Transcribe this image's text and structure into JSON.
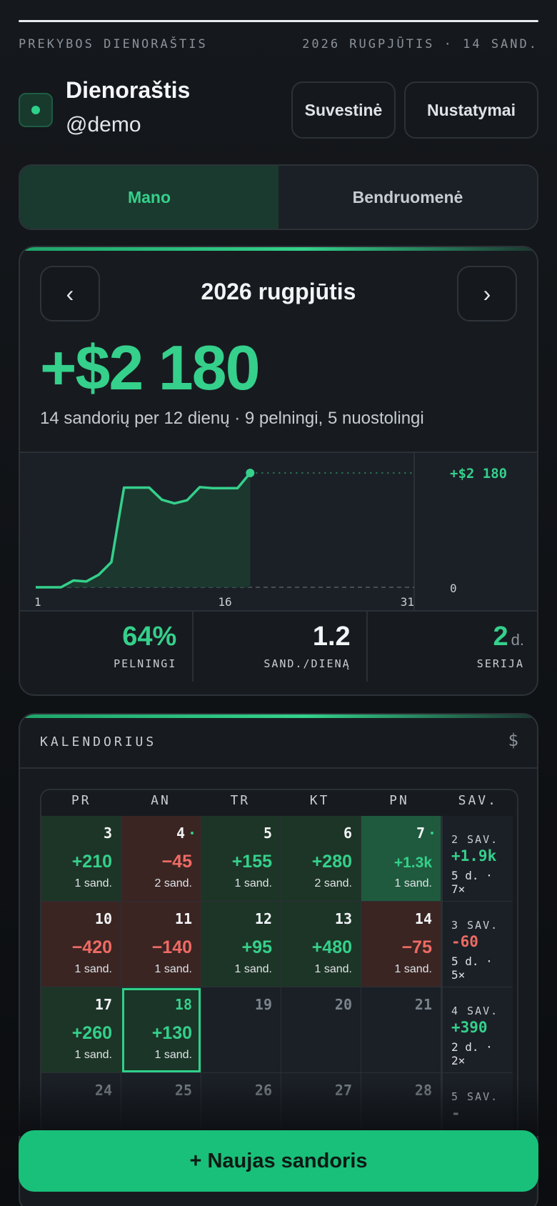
{
  "meta": {
    "left": "PREKYBOS DIENORAŠTIS",
    "right": "2026 RUGPJŪTIS · 14 SAND."
  },
  "header": {
    "title": "Dienoraštis",
    "handle": "@demo",
    "summary_btn": "Suvestinė",
    "settings_btn": "Nustatymai"
  },
  "tabs": {
    "mine": "Mano",
    "community": "Bendruomenė"
  },
  "overview": {
    "prev": "‹",
    "next": "›",
    "month": "2026 rugpjūtis",
    "total": "+$2 180",
    "summary": "14 sandorių per 12 dienų · 9 pelningi, 5 nuostolingi"
  },
  "chart_data": {
    "type": "area",
    "x": [
      1,
      2,
      3,
      4,
      5,
      6,
      7,
      8,
      9,
      10,
      11,
      12,
      13,
      14,
      15,
      16,
      17,
      18
    ],
    "y": [
      0,
      0,
      0,
      130,
      110,
      240,
      480,
      1900,
      1900,
      1900,
      1670,
      1600,
      1660,
      1910,
      1890,
      1890,
      1890,
      2180
    ],
    "xticks": [
      "1",
      "16",
      "31"
    ],
    "xlim": [
      1,
      31
    ],
    "ylim": [
      0,
      2180
    ],
    "last_label": "+$2 180",
    "zero_label": "0",
    "colors": {
      "line": "#35d08b",
      "fill": "#1c3a2e",
      "negative": "#e05a55"
    }
  },
  "stats": [
    {
      "value": "64%",
      "label": "PELNINGI",
      "color": "#35d08b"
    },
    {
      "value": "1.2",
      "label": "SAND./DIENĄ",
      "color": "#f2f4f6"
    },
    {
      "value": "2",
      "unit": "d.",
      "label": "SERIJA",
      "color": "#35d08b"
    }
  ],
  "calendar": {
    "title": "KALENDORIUS",
    "currency": "$",
    "days_header": [
      "PR",
      "AN",
      "TR",
      "KT",
      "PN"
    ],
    "week_header": "SAV.",
    "weeks": [
      {
        "days": [
          {
            "day": "3",
            "pnl": "+210",
            "count": "1 sand.",
            "tone": "pos"
          },
          {
            "day": "4",
            "pnl": "−45",
            "count": "2 sand.",
            "tone": "neg",
            "dot": true
          },
          {
            "day": "5",
            "pnl": "+155",
            "count": "1 sand.",
            "tone": "pos"
          },
          {
            "day": "6",
            "pnl": "+280",
            "count": "2 sand.",
            "tone": "pos"
          },
          {
            "day": "7",
            "pnl": "+1.3k",
            "count": "1 sand.",
            "tone": "pos-strong",
            "dot": true
          }
        ],
        "summary": {
          "name": "2 SAV.",
          "pnl": "+1.9k",
          "stats": "5 d. · 7×",
          "tone": "pos"
        }
      },
      {
        "days": [
          {
            "day": "10",
            "pnl": "−420",
            "count": "1 sand.",
            "tone": "neg"
          },
          {
            "day": "11",
            "pnl": "−140",
            "count": "1 sand.",
            "tone": "neg"
          },
          {
            "day": "12",
            "pnl": "+95",
            "count": "1 sand.",
            "tone": "pos"
          },
          {
            "day": "13",
            "pnl": "+480",
            "count": "1 sand.",
            "tone": "pos"
          },
          {
            "day": "14",
            "pnl": "−75",
            "count": "1 sand.",
            "tone": "neg"
          }
        ],
        "summary": {
          "name": "3 SAV.",
          "pnl": "-60",
          "stats": "5 d. · 5×",
          "tone": "neg"
        }
      },
      {
        "days": [
          {
            "day": "17",
            "pnl": "+260",
            "count": "1 sand.",
            "tone": "pos"
          },
          {
            "day": "18",
            "pnl": "+130",
            "count": "1 sand.",
            "tone": "today"
          },
          {
            "day": "19",
            "pnl": "",
            "count": "",
            "tone": "empty"
          },
          {
            "day": "20",
            "pnl": "",
            "count": "",
            "tone": "empty"
          },
          {
            "day": "21",
            "pnl": "",
            "count": "",
            "tone": "empty"
          }
        ],
        "summary": {
          "name": "4 SAV.",
          "pnl": "+390",
          "stats": "2 d. · 2×",
          "tone": "pos"
        }
      },
      {
        "days": [
          {
            "day": "24",
            "pnl": "",
            "count": "",
            "tone": "empty"
          },
          {
            "day": "25",
            "pnl": "",
            "count": "",
            "tone": "empty"
          },
          {
            "day": "26",
            "pnl": "",
            "count": "",
            "tone": "empty"
          },
          {
            "day": "27",
            "pnl": "",
            "count": "",
            "tone": "empty"
          },
          {
            "day": "28",
            "pnl": "",
            "count": "",
            "tone": "empty"
          }
        ],
        "summary": {
          "name": "5 SAV.",
          "pnl": "-",
          "stats": "",
          "tone": "none"
        }
      }
    ]
  },
  "fab": {
    "label": "+ Naujas sandoris"
  },
  "colors": {
    "green": "#35d08b",
    "red": "#ee6b63",
    "brand": "#19c07a"
  }
}
